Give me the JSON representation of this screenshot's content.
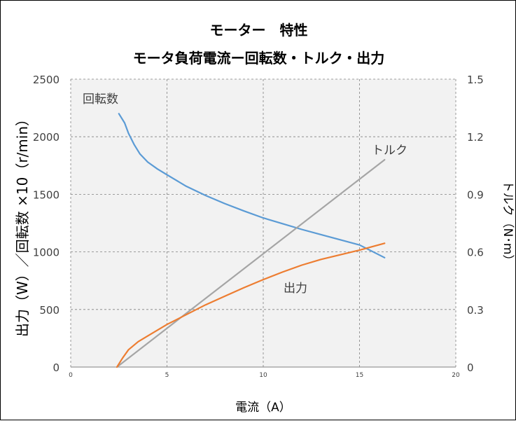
{
  "chart_data": {
    "type": "line",
    "title": "モーター　特性",
    "subtitle": "モータ負荷電流ー回転数・トルク・出力",
    "xlabel": "電流（A）",
    "ylabel_left": "出力（W）／回転数 ×10（r/min）",
    "ylabel_right": "トルク（N･m）",
    "xlim": [
      0,
      20
    ],
    "ylim_left": [
      0,
      2500
    ],
    "ylim_right": [
      0,
      1.5
    ],
    "x_ticks": [
      "0",
      "5",
      "10",
      "15",
      "20"
    ],
    "y_left_ticks": [
      "0",
      "500",
      "1000",
      "1500",
      "2000",
      "2500"
    ],
    "y_right_ticks": [
      "0",
      "0.3",
      "0.6",
      "0.9",
      "1.2",
      "1.5"
    ],
    "grid": true,
    "plot_background": "#f2f2f2",
    "series": [
      {
        "name": "回転数",
        "axis": "left",
        "color": "#5b9bd5",
        "x": [
          2.5,
          2.8,
          3.0,
          3.3,
          3.6,
          4.0,
          4.5,
          5.0,
          6.0,
          7.0,
          8.0,
          9.0,
          10.0,
          11.0,
          12.0,
          13.0,
          14.0,
          15.0,
          16.3
        ],
        "y": [
          2200,
          2120,
          2030,
          1930,
          1850,
          1780,
          1720,
          1670,
          1570,
          1490,
          1420,
          1355,
          1295,
          1245,
          1195,
          1150,
          1105,
          1060,
          950
        ]
      },
      {
        "name": "トルク",
        "axis": "right",
        "color": "#a5a5a5",
        "x": [
          2.4,
          16.3
        ],
        "y": [
          0.0,
          1.08
        ]
      },
      {
        "name": "出力",
        "axis": "left",
        "color": "#ed7d31",
        "x": [
          2.4,
          2.7,
          3.0,
          3.5,
          4.0,
          5.0,
          6.0,
          7.0,
          8.0,
          9.0,
          10.0,
          11.0,
          12.0,
          13.0,
          14.0,
          15.0,
          16.3
        ],
        "y": [
          0,
          80,
          150,
          220,
          270,
          370,
          455,
          540,
          615,
          690,
          760,
          825,
          885,
          935,
          975,
          1015,
          1075
        ]
      }
    ]
  }
}
